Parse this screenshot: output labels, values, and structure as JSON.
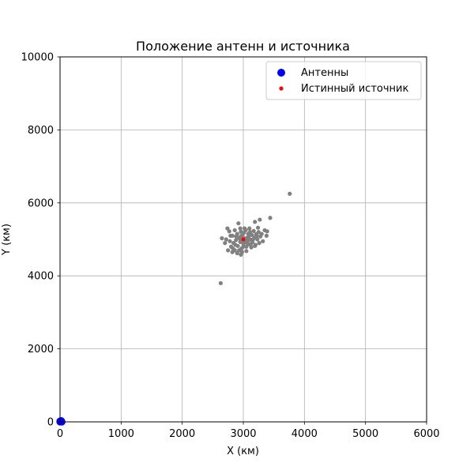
{
  "colors": {
    "antennas": "#0000ff",
    "source": "#ff0000",
    "estimates": "#808080",
    "grid": "#b0b0b0",
    "axes": "#000000",
    "background": "#ffffff"
  },
  "chart_data": {
    "type": "scatter",
    "title": "Положение антенн и источника",
    "xlabel": "X (км)",
    "ylabel": "Y (км)",
    "xlim": [
      0,
      6000
    ],
    "ylim": [
      0,
      10000
    ],
    "xticks": [
      0,
      1000,
      2000,
      3000,
      4000,
      5000,
      6000
    ],
    "yticks": [
      0,
      2000,
      4000,
      6000,
      8000,
      10000
    ],
    "grid": true,
    "legend_position": "top-right",
    "legend": [
      "Антенны",
      "Истинный источник"
    ],
    "series": [
      {
        "name": "Антенны",
        "color": "blue",
        "points": [
          [
            0,
            0
          ],
          [
            15,
            10
          ],
          [
            30,
            0
          ],
          [
            0,
            20
          ],
          [
            20,
            30
          ]
        ]
      },
      {
        "name": "Истинный источник",
        "color": "red",
        "points": [
          [
            3000,
            5000
          ]
        ]
      },
      {
        "color": "gray",
        "points": [
          [
            3760,
            6250
          ],
          [
            3440,
            5590
          ],
          [
            3270,
            5540
          ],
          [
            3190,
            5480
          ],
          [
            2920,
            5440
          ],
          [
            2630,
            3800
          ],
          [
            2650,
            5030
          ],
          [
            2740,
            5300
          ],
          [
            2770,
            5220
          ],
          [
            2820,
            5100
          ],
          [
            2860,
            5250
          ],
          [
            2880,
            4980
          ],
          [
            2900,
            5150
          ],
          [
            2910,
            4820
          ],
          [
            2930,
            5050
          ],
          [
            2950,
            4930
          ],
          [
            2960,
            5210
          ],
          [
            2970,
            4750
          ],
          [
            2990,
            5080
          ],
          [
            3000,
            4880
          ],
          [
            3010,
            5180
          ],
          [
            3020,
            4960
          ],
          [
            3040,
            5250
          ],
          [
            3050,
            4800
          ],
          [
            3060,
            5040
          ],
          [
            3080,
            5150
          ],
          [
            3090,
            4870
          ],
          [
            3100,
            5300
          ],
          [
            3110,
            5000
          ],
          [
            3130,
            4780
          ],
          [
            3140,
            5120
          ],
          [
            3150,
            4920
          ],
          [
            3170,
            5230
          ],
          [
            3180,
            5050
          ],
          [
            3200,
            4850
          ],
          [
            3210,
            5140
          ],
          [
            3230,
            5000
          ],
          [
            3250,
            5200
          ],
          [
            3260,
            4900
          ],
          [
            3280,
            5080
          ],
          [
            3300,
            5150
          ],
          [
            3320,
            4950
          ],
          [
            3350,
            5250
          ],
          [
            3380,
            5100
          ],
          [
            3390,
            5220
          ],
          [
            2700,
            4900
          ],
          [
            2720,
            5000
          ],
          [
            2750,
            4700
          ],
          [
            2780,
            4950
          ],
          [
            2800,
            4800
          ],
          [
            2820,
            4650
          ],
          [
            2840,
            4900
          ],
          [
            2860,
            4700
          ],
          [
            2880,
            5080
          ],
          [
            2900,
            4620
          ],
          [
            2930,
            4700
          ],
          [
            2950,
            5300
          ],
          [
            2980,
            4650
          ],
          [
            3000,
            4800
          ],
          [
            3020,
            5300
          ],
          [
            3050,
            4680
          ],
          [
            3070,
            4950
          ],
          [
            3090,
            5100
          ],
          [
            3120,
            4850
          ],
          [
            3160,
            5000
          ],
          [
            3190,
            4820
          ],
          [
            3220,
            5100
          ],
          [
            2990,
            4980
          ],
          [
            3030,
            5020
          ],
          [
            3060,
            4900
          ],
          [
            2940,
            5020
          ],
          [
            3010,
            4920
          ],
          [
            3080,
            5060
          ],
          [
            2870,
            4850
          ],
          [
            3140,
            4960
          ],
          [
            2970,
            5100
          ],
          [
            2790,
            5100
          ],
          [
            2830,
            4750
          ],
          [
            3240,
            5320
          ],
          [
            2960,
            4580
          ],
          [
            3110,
            5200
          ]
        ]
      }
    ]
  }
}
